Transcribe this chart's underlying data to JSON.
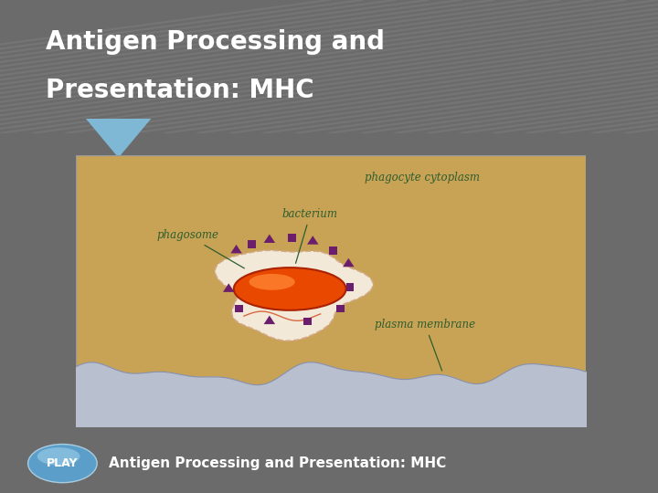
{
  "title_line1": "Antigen Processing and",
  "title_line2": "Presentation: MHC",
  "title_color": "#FFFFFF",
  "title_bg_color": "#7EB8D5",
  "slide_bg_color": "#6B6B6B",
  "image_bg_color": "#C8A255",
  "membrane_color": "#B8BFCF",
  "phagosome_color": "#F5EEE0",
  "bacterium_color": "#E84800",
  "bacterium_highlight": "#FF8833",
  "mhc_color": "#6B1E6B",
  "text_color": "#2E5E2E",
  "label_phagocyte": "phagocyte cytoplasm",
  "label_bacterium": "bacterium",
  "label_phagosome": "phagosome",
  "label_membrane": "plasma membrane",
  "play_text": "Antigen Processing and Presentation: MHC",
  "play_btn_color1": "#5B9EC9",
  "play_btn_color2": "#9DD0E8",
  "bottom_bar_color": "#5A5A5A",
  "bottom_text_color": "#FFFFFF",
  "stripe_color": "#FFFFFF",
  "stripe_alpha": 0.07
}
